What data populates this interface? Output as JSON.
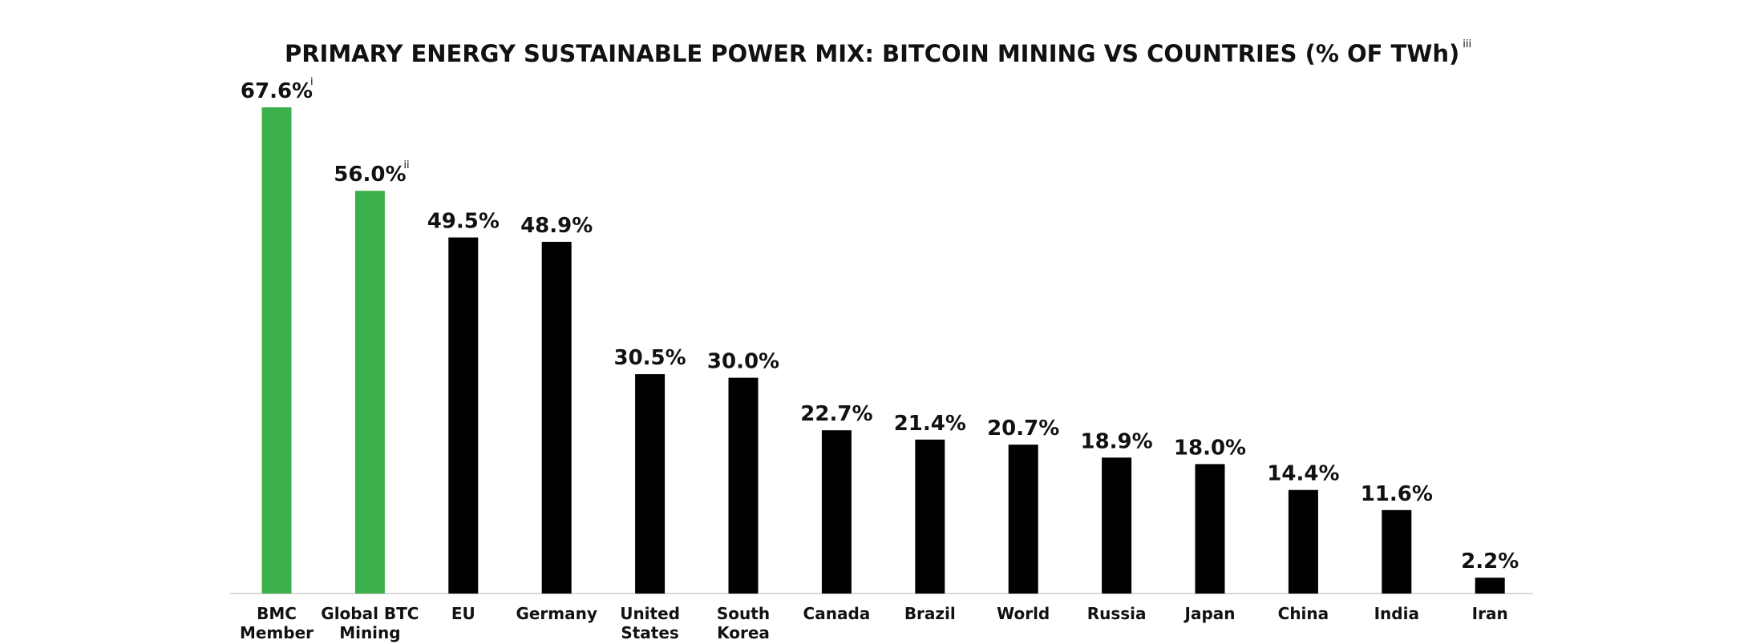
{
  "chart_data": {
    "type": "bar",
    "title": "PRIMARY ENERGY SUSTAINABLE POWER MIX: BITCOIN MINING VS COUNTRIES (% OF TWh)",
    "title_footnote": "iii",
    "categories": [
      "BMC Member",
      "Global BTC Mining",
      "EU",
      "Germany",
      "United States",
      "South Korea",
      "Canada",
      "Brazil",
      "World",
      "Russia",
      "Japan",
      "China",
      "India",
      "Iran"
    ],
    "category_lines": [
      [
        "BMC",
        "Member"
      ],
      [
        "Global BTC",
        "Mining"
      ],
      [
        "EU"
      ],
      [
        "Germany"
      ],
      [
        "United",
        "States"
      ],
      [
        "South",
        "Korea"
      ],
      [
        "Canada"
      ],
      [
        "Brazil"
      ],
      [
        "World"
      ],
      [
        "Russia"
      ],
      [
        "Japan"
      ],
      [
        "China"
      ],
      [
        "India"
      ],
      [
        "Iran"
      ]
    ],
    "values": [
      67.6,
      56.0,
      49.5,
      48.9,
      30.5,
      30.0,
      22.7,
      21.4,
      20.7,
      18.9,
      18.0,
      14.4,
      11.6,
      2.2
    ],
    "value_labels": [
      "67.6%",
      "56.0%",
      "49.5%",
      "48.9%",
      "30.5%",
      "30.0%",
      "22.7%",
      "21.4%",
      "20.7%",
      "18.9%",
      "18.0%",
      "14.4%",
      "11.6%",
      "2.2%"
    ],
    "label_footnotes": [
      "i",
      "ii",
      "",
      "",
      "",
      "",
      "",
      "",
      "",
      "",
      "",
      "",
      "",
      ""
    ],
    "bar_colors": [
      "#3cb04b",
      "#3cb04b",
      "#000000",
      "#000000",
      "#000000",
      "#000000",
      "#000000",
      "#000000",
      "#000000",
      "#000000",
      "#000000",
      "#000000",
      "#000000",
      "#000000"
    ],
    "ylim": [
      0,
      67.6
    ],
    "grid": false,
    "legend": "none",
    "xlabel": "",
    "ylabel": ""
  }
}
